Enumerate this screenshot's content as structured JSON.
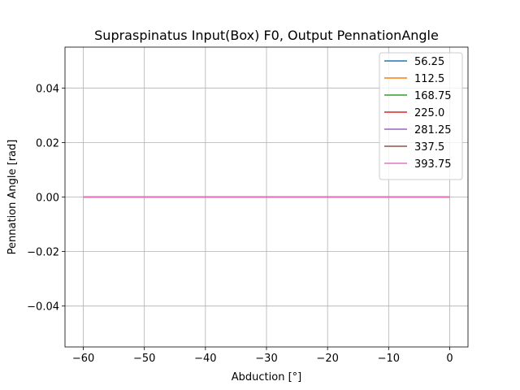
{
  "chart_data": {
    "type": "line",
    "title": "Supraspinatus Input(Box) F0, Output PennationAngle",
    "xlabel": "Abduction [°]",
    "ylabel": "Pennation Angle [rad]",
    "xlim": [
      -63,
      3
    ],
    "ylim": [
      -0.055,
      0.055
    ],
    "xticks": [
      -60,
      -50,
      -40,
      -30,
      -20,
      -10,
      0
    ],
    "xtick_labels": [
      "−60",
      "−50",
      "−40",
      "−30",
      "−20",
      "−10",
      "0"
    ],
    "yticks": [
      -0.04,
      -0.02,
      0.0,
      0.02,
      0.04
    ],
    "ytick_labels": [
      "−0.04",
      "−0.02",
      "0.00",
      "0.02",
      "0.04"
    ],
    "grid": true,
    "legend_position": "top-right",
    "x": [
      -60,
      -50,
      -40,
      -30,
      -20,
      -10,
      0
    ],
    "series": [
      {
        "name": "56.25",
        "color": "#1f77b4",
        "values": [
          0,
          0,
          0,
          0,
          0,
          0,
          0
        ]
      },
      {
        "name": "112.5",
        "color": "#ff7f0e",
        "values": [
          0,
          0,
          0,
          0,
          0,
          0,
          0
        ]
      },
      {
        "name": "168.75",
        "color": "#2ca02c",
        "values": [
          0,
          0,
          0,
          0,
          0,
          0,
          0
        ]
      },
      {
        "name": "225.0",
        "color": "#d62728",
        "values": [
          0,
          0,
          0,
          0,
          0,
          0,
          0
        ]
      },
      {
        "name": "281.25",
        "color": "#9467bd",
        "values": [
          0,
          0,
          0,
          0,
          0,
          0,
          0
        ]
      },
      {
        "name": "337.5",
        "color": "#8c564b",
        "values": [
          0,
          0,
          0,
          0,
          0,
          0,
          0
        ]
      },
      {
        "name": "393.75",
        "color": "#e377c2",
        "values": [
          0,
          0,
          0,
          0,
          0,
          0,
          0
        ]
      }
    ]
  }
}
